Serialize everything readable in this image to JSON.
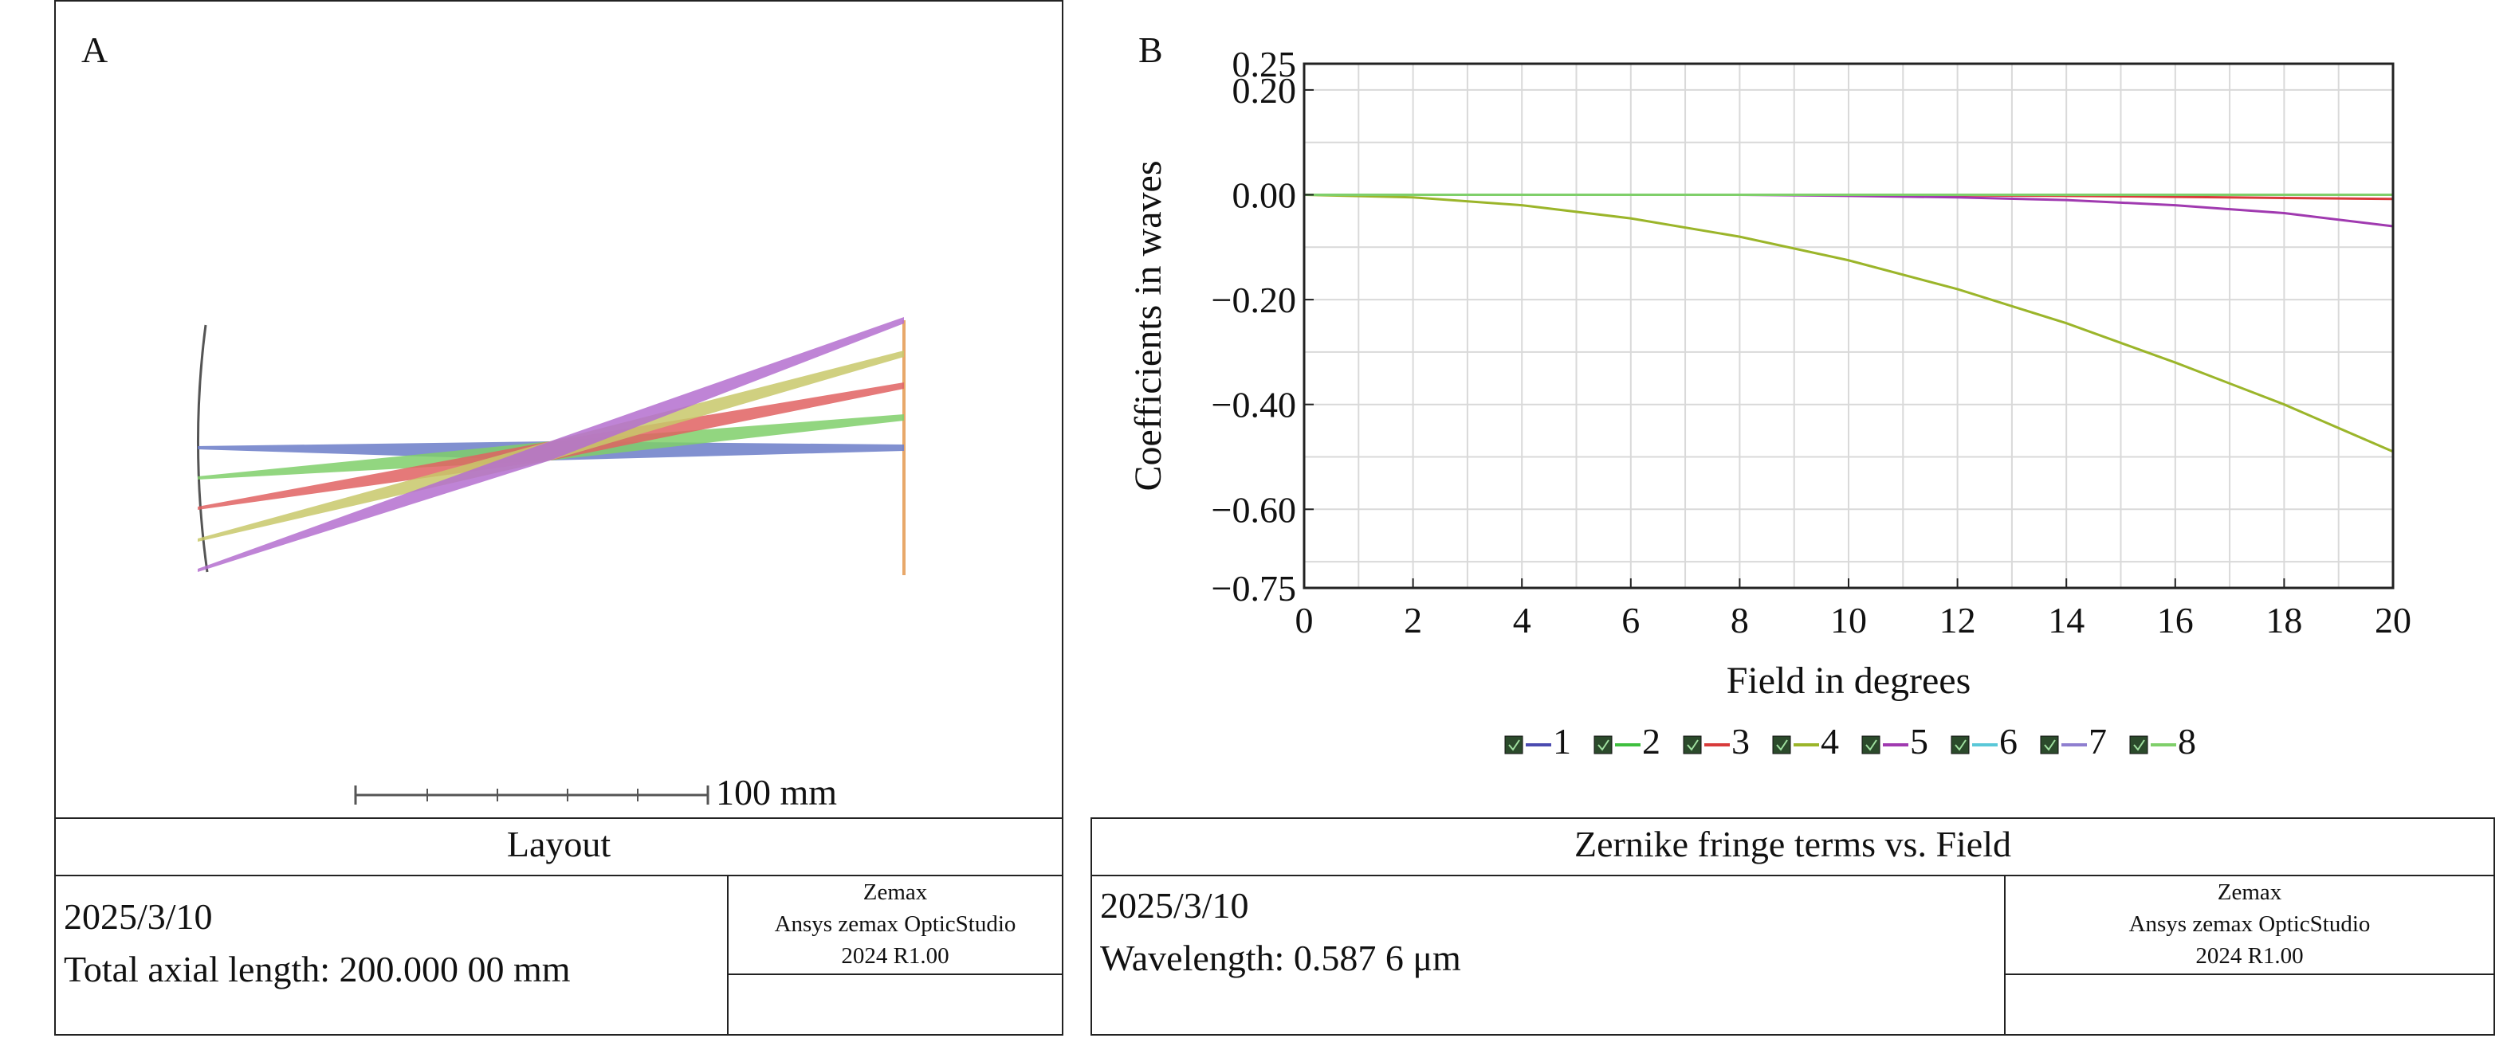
{
  "colors": {
    "blue": "#6b7cc8",
    "green": "#7fcf6a",
    "red": "#e06161",
    "yellow": "#c8c86a",
    "magenta": "#b46ecf",
    "image_plane": "#e8a86a",
    "lens": "#555555",
    "grid": "#d9d9d9",
    "series_1": "#4b4bb0",
    "series_2": "#3fbf3f",
    "series_3": "#d83b3b",
    "series_4": "#9bb52a",
    "series_5": "#a03ab0",
    "series_6": "#5ac8d8",
    "series_7": "#8f7fd0",
    "series_8": "#7fcf6a"
  },
  "layout_panel": {
    "label": "A",
    "scale_label": "100 mm",
    "title": "Layout",
    "date": "2025/3/10",
    "info": "Total axial length: 200.000 00 mm",
    "vendor_line1": "Zemax",
    "vendor_line2": "Ansys zemax OpticStudio",
    "vendor_line3": "2024 R1.00"
  },
  "chart_panel": {
    "label": "B",
    "title": "Zernike fringe terms vs. Field",
    "date": "2025/3/10",
    "info": "Wavelength: 0.587 6 μm",
    "vendor_line1": "Zemax",
    "vendor_line2": "Ansys zemax OpticStudio",
    "vendor_line3": "2024 R1.00"
  },
  "chart_data": {
    "type": "line",
    "xlabel": "Field in degrees",
    "ylabel": "Coefficients in waves",
    "xlim": [
      0,
      20
    ],
    "ylim": [
      -0.75,
      0.25
    ],
    "x_ticks": [
      0,
      2,
      4,
      6,
      8,
      10,
      12,
      14,
      16,
      18,
      20
    ],
    "x_tick_labels": [
      "0",
      "2",
      "4",
      "6",
      "8",
      "10",
      "12",
      "14",
      "16",
      "18",
      "20"
    ],
    "y_ticks": [
      0.25,
      0.2,
      0.0,
      -0.2,
      -0.4,
      -0.6,
      -0.75
    ],
    "y_tick_labels": [
      "0.25",
      "0.20",
      "0.00",
      "−0.20",
      "−0.40",
      "−0.60",
      "−0.75"
    ],
    "grid": true,
    "legend_position": "bottom",
    "x": [
      0,
      2,
      4,
      6,
      8,
      10,
      12,
      14,
      16,
      18,
      20
    ],
    "series": [
      {
        "name": "1",
        "values": [
          0,
          0,
          0,
          0,
          0,
          0,
          0,
          0,
          0,
          0,
          0
        ]
      },
      {
        "name": "2",
        "values": [
          0,
          0,
          0,
          0,
          0,
          0,
          0,
          0,
          0,
          0,
          0
        ]
      },
      {
        "name": "3",
        "values": [
          0,
          0,
          0,
          0,
          0,
          0,
          -0.001,
          -0.002,
          -0.004,
          -0.006,
          -0.008
        ]
      },
      {
        "name": "4",
        "values": [
          0,
          -0.005,
          -0.02,
          -0.045,
          -0.08,
          -0.125,
          -0.18,
          -0.245,
          -0.32,
          -0.4,
          -0.49
        ]
      },
      {
        "name": "5",
        "values": [
          0,
          0,
          0,
          0,
          0,
          -0.002,
          -0.005,
          -0.01,
          -0.02,
          -0.035,
          -0.06
        ]
      },
      {
        "name": "6",
        "values": [
          0,
          0,
          0,
          0,
          0,
          0,
          0,
          0,
          0,
          0,
          0
        ]
      },
      {
        "name": "7",
        "values": [
          0,
          0,
          0,
          0,
          0,
          0,
          0,
          0,
          0,
          0,
          0
        ]
      },
      {
        "name": "8",
        "values": [
          0,
          0,
          0,
          0,
          0,
          0,
          0,
          0,
          0,
          0,
          0
        ]
      }
    ]
  }
}
